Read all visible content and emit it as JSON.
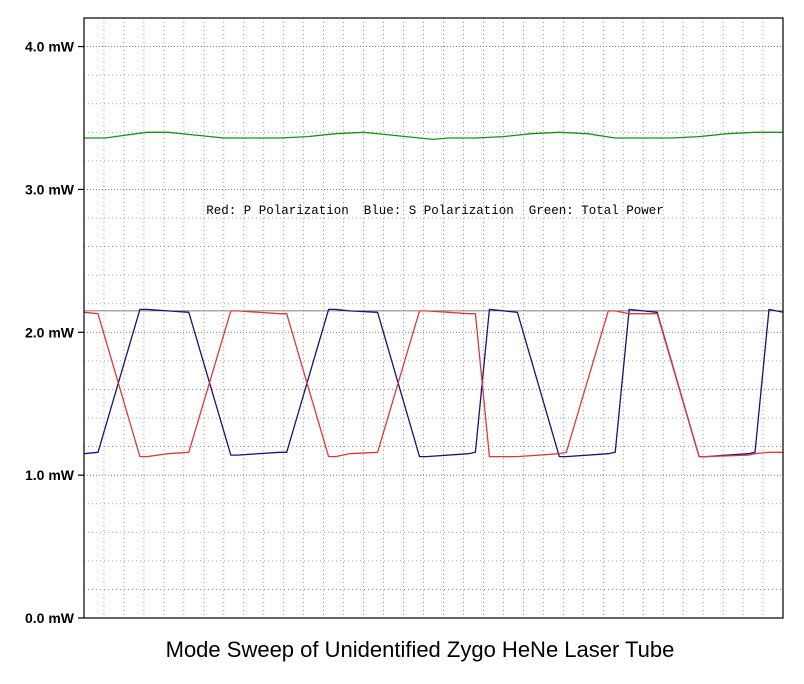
{
  "chart_data": {
    "type": "line",
    "title": "Mode Sweep of Unidentified Zygo HeNe Laser Tube",
    "xlabel": "",
    "ylabel": "",
    "ylim": [
      0,
      4.2
    ],
    "xlim": [
      0,
      100
    ],
    "grid": true,
    "grid_minor": true,
    "yticks": [
      0,
      1,
      2,
      3,
      4
    ],
    "ytick_labels": [
      "0.0 mW",
      "1.0 mW",
      "2.0 mW",
      "3.0 mW",
      "4.0 mW"
    ],
    "legend": {
      "placement": "top-center",
      "text": "Red: P Polarization  Blue: S Polarization  Green: Total Power"
    },
    "reference_line": 2.15,
    "series": [
      {
        "key": "total",
        "color": "#1a8f1a",
        "x": [
          0,
          3,
          6,
          9,
          12,
          16,
          20,
          24,
          28,
          32,
          36,
          40,
          44,
          48,
          50,
          52,
          56,
          60,
          64,
          68,
          72,
          76,
          80,
          84,
          88,
          92,
          96,
          100
        ],
        "values": [
          3.36,
          3.36,
          3.38,
          3.4,
          3.4,
          3.38,
          3.36,
          3.36,
          3.36,
          3.37,
          3.39,
          3.4,
          3.38,
          3.36,
          3.35,
          3.36,
          3.36,
          3.37,
          3.39,
          3.4,
          3.39,
          3.36,
          3.36,
          3.36,
          3.37,
          3.39,
          3.4,
          3.4
        ]
      },
      {
        "key": "s",
        "color": "#14147a",
        "x": [
          0,
          2,
          8,
          9,
          12,
          15,
          21,
          22,
          28,
          29,
          35,
          36,
          38,
          42,
          48,
          49,
          55,
          56,
          58,
          62,
          68,
          69,
          75,
          76,
          78,
          82,
          88,
          89,
          95,
          96,
          98,
          100
        ],
        "values": [
          1.15,
          1.16,
          2.16,
          2.16,
          2.15,
          2.14,
          1.14,
          1.14,
          1.16,
          1.16,
          2.16,
          2.16,
          2.15,
          2.14,
          1.13,
          1.13,
          1.15,
          1.16,
          2.16,
          2.14,
          1.13,
          1.13,
          1.15,
          1.16,
          2.16,
          2.14,
          1.13,
          1.13,
          1.15,
          1.16,
          2.16,
          2.14
        ]
      },
      {
        "key": "p",
        "color": "#dc3a3a",
        "x": [
          0,
          2,
          8,
          9,
          12,
          15,
          21,
          22,
          28,
          29,
          35,
          36,
          38,
          42,
          48,
          49,
          55,
          56,
          58,
          62,
          68,
          69,
          75,
          76,
          78,
          82,
          88,
          89,
          95,
          96,
          98,
          100
        ],
        "values": [
          2.14,
          2.13,
          1.13,
          1.13,
          1.15,
          1.16,
          2.15,
          2.15,
          2.13,
          2.13,
          1.13,
          1.13,
          1.15,
          1.16,
          2.15,
          2.15,
          2.13,
          2.13,
          1.13,
          1.13,
          1.15,
          1.16,
          2.15,
          2.15,
          2.13,
          2.13,
          1.13,
          1.13,
          1.14,
          1.15,
          1.16,
          1.16
        ]
      }
    ]
  }
}
